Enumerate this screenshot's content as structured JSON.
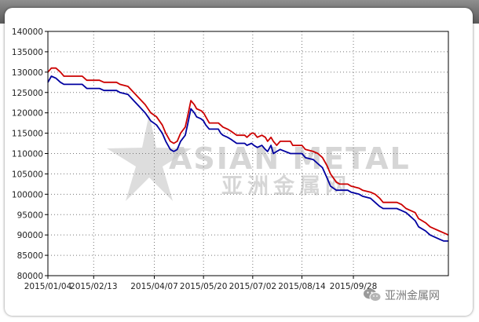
{
  "watermark": {
    "brand_en": "ASIAN METAL",
    "brand_cn": "亚洲金属网"
  },
  "credit": {
    "text": "亚洲金属网",
    "icon": "wechat-icon"
  },
  "chart_data": {
    "type": "line",
    "title": "",
    "xlabel": "",
    "ylabel": "",
    "ylim": [
      80000,
      140000
    ],
    "grid": true,
    "legend": "none",
    "y_ticks": [
      "140000",
      "135000",
      "130000",
      "125000",
      "120000",
      "115000",
      "110000",
      "105000",
      "100000",
      "95000",
      "90000",
      "85000",
      "80000"
    ],
    "x_ticks": [
      "2015/01/04",
      "2015/02/13",
      "2015/04/07",
      "2015/05/20",
      "2015/07/02",
      "2015/08/14",
      "2015/09/28"
    ],
    "x_days": [
      0,
      40,
      93,
      136,
      179,
      222,
      267
    ],
    "x_range_days": [
      0,
      350
    ],
    "series": [
      {
        "color": "#cc0000",
        "points": [
          [
            0,
            130000
          ],
          [
            3,
            131000
          ],
          [
            7,
            131000
          ],
          [
            11,
            130000
          ],
          [
            14,
            129000
          ],
          [
            30,
            129000
          ],
          [
            34,
            128000
          ],
          [
            45,
            128000
          ],
          [
            49,
            127500
          ],
          [
            60,
            127500
          ],
          [
            63,
            127000
          ],
          [
            70,
            126500
          ],
          [
            75,
            125000
          ],
          [
            80,
            123500
          ],
          [
            85,
            122000
          ],
          [
            90,
            120000
          ],
          [
            95,
            119000
          ],
          [
            100,
            117000
          ],
          [
            103,
            115000
          ],
          [
            107,
            113000
          ],
          [
            110,
            112500
          ],
          [
            113,
            113000
          ],
          [
            116,
            115000
          ],
          [
            120,
            116500
          ],
          [
            122,
            119000
          ],
          [
            125,
            123000
          ],
          [
            128,
            122000
          ],
          [
            130,
            121000
          ],
          [
            134,
            120500
          ],
          [
            136,
            120000
          ],
          [
            138,
            119000
          ],
          [
            141,
            117500
          ],
          [
            149,
            117500
          ],
          [
            151,
            117000
          ],
          [
            153,
            116500
          ],
          [
            157,
            116000
          ],
          [
            160,
            115500
          ],
          [
            165,
            114500
          ],
          [
            172,
            114500
          ],
          [
            174,
            114000
          ],
          [
            178,
            115000
          ],
          [
            180,
            115000
          ],
          [
            183,
            114000
          ],
          [
            187,
            114500
          ],
          [
            190,
            114000
          ],
          [
            192,
            113000
          ],
          [
            195,
            114000
          ],
          [
            197,
            113000
          ],
          [
            200,
            112000
          ],
          [
            203,
            113000
          ],
          [
            212,
            113000
          ],
          [
            214,
            112000
          ],
          [
            222,
            112000
          ],
          [
            225,
            111000
          ],
          [
            232,
            110500
          ],
          [
            236,
            110000
          ],
          [
            240,
            109000
          ],
          [
            244,
            107000
          ],
          [
            247,
            105000
          ],
          [
            252,
            103000
          ],
          [
            255,
            102500
          ],
          [
            262,
            102500
          ],
          [
            265,
            102000
          ],
          [
            272,
            101500
          ],
          [
            275,
            101000
          ],
          [
            282,
            100500
          ],
          [
            286,
            100000
          ],
          [
            290,
            99000
          ],
          [
            293,
            98000
          ],
          [
            305,
            98000
          ],
          [
            309,
            97500
          ],
          [
            313,
            96500
          ],
          [
            317,
            96000
          ],
          [
            321,
            95500
          ],
          [
            324,
            94000
          ],
          [
            330,
            93000
          ],
          [
            334,
            92000
          ],
          [
            338,
            91500
          ],
          [
            342,
            91000
          ],
          [
            346,
            90500
          ],
          [
            350,
            90000
          ]
        ]
      },
      {
        "color": "#0000a0",
        "points": [
          [
            0,
            127500
          ],
          [
            3,
            129000
          ],
          [
            7,
            128500
          ],
          [
            11,
            127500
          ],
          [
            14,
            127000
          ],
          [
            30,
            127000
          ],
          [
            34,
            126000
          ],
          [
            45,
            126000
          ],
          [
            49,
            125500
          ],
          [
            60,
            125500
          ],
          [
            63,
            125000
          ],
          [
            70,
            124500
          ],
          [
            75,
            123000
          ],
          [
            80,
            121500
          ],
          [
            85,
            120000
          ],
          [
            90,
            118000
          ],
          [
            95,
            117000
          ],
          [
            100,
            115000
          ],
          [
            103,
            113000
          ],
          [
            107,
            111000
          ],
          [
            110,
            110500
          ],
          [
            113,
            111000
          ],
          [
            116,
            113000
          ],
          [
            120,
            114500
          ],
          [
            122,
            117000
          ],
          [
            125,
            121000
          ],
          [
            128,
            120000
          ],
          [
            130,
            119000
          ],
          [
            134,
            118500
          ],
          [
            136,
            118000
          ],
          [
            138,
            117000
          ],
          [
            141,
            116000
          ],
          [
            149,
            116000
          ],
          [
            151,
            115000
          ],
          [
            153,
            114500
          ],
          [
            157,
            114000
          ],
          [
            160,
            113500
          ],
          [
            165,
            112500
          ],
          [
            172,
            112500
          ],
          [
            174,
            112000
          ],
          [
            178,
            112500
          ],
          [
            180,
            112000
          ],
          [
            183,
            111500
          ],
          [
            187,
            112000
          ],
          [
            190,
            111000
          ],
          [
            192,
            110500
          ],
          [
            195,
            112000
          ],
          [
            197,
            110000
          ],
          [
            200,
            110500
          ],
          [
            203,
            111000
          ],
          [
            212,
            110000
          ],
          [
            214,
            110000
          ],
          [
            222,
            110000
          ],
          [
            225,
            109000
          ],
          [
            232,
            108500
          ],
          [
            236,
            107500
          ],
          [
            240,
            106500
          ],
          [
            244,
            104000
          ],
          [
            247,
            102000
          ],
          [
            252,
            101000
          ],
          [
            262,
            101000
          ],
          [
            265,
            100500
          ],
          [
            272,
            100000
          ],
          [
            275,
            99500
          ],
          [
            282,
            99000
          ],
          [
            286,
            98000
          ],
          [
            290,
            97000
          ],
          [
            293,
            96500
          ],
          [
            305,
            96500
          ],
          [
            309,
            96000
          ],
          [
            313,
            95500
          ],
          [
            317,
            94500
          ],
          [
            321,
            93500
          ],
          [
            324,
            92000
          ],
          [
            330,
            91000
          ],
          [
            334,
            90000
          ],
          [
            338,
            89500
          ],
          [
            342,
            89000
          ],
          [
            346,
            88500
          ],
          [
            350,
            88500
          ]
        ]
      }
    ]
  }
}
